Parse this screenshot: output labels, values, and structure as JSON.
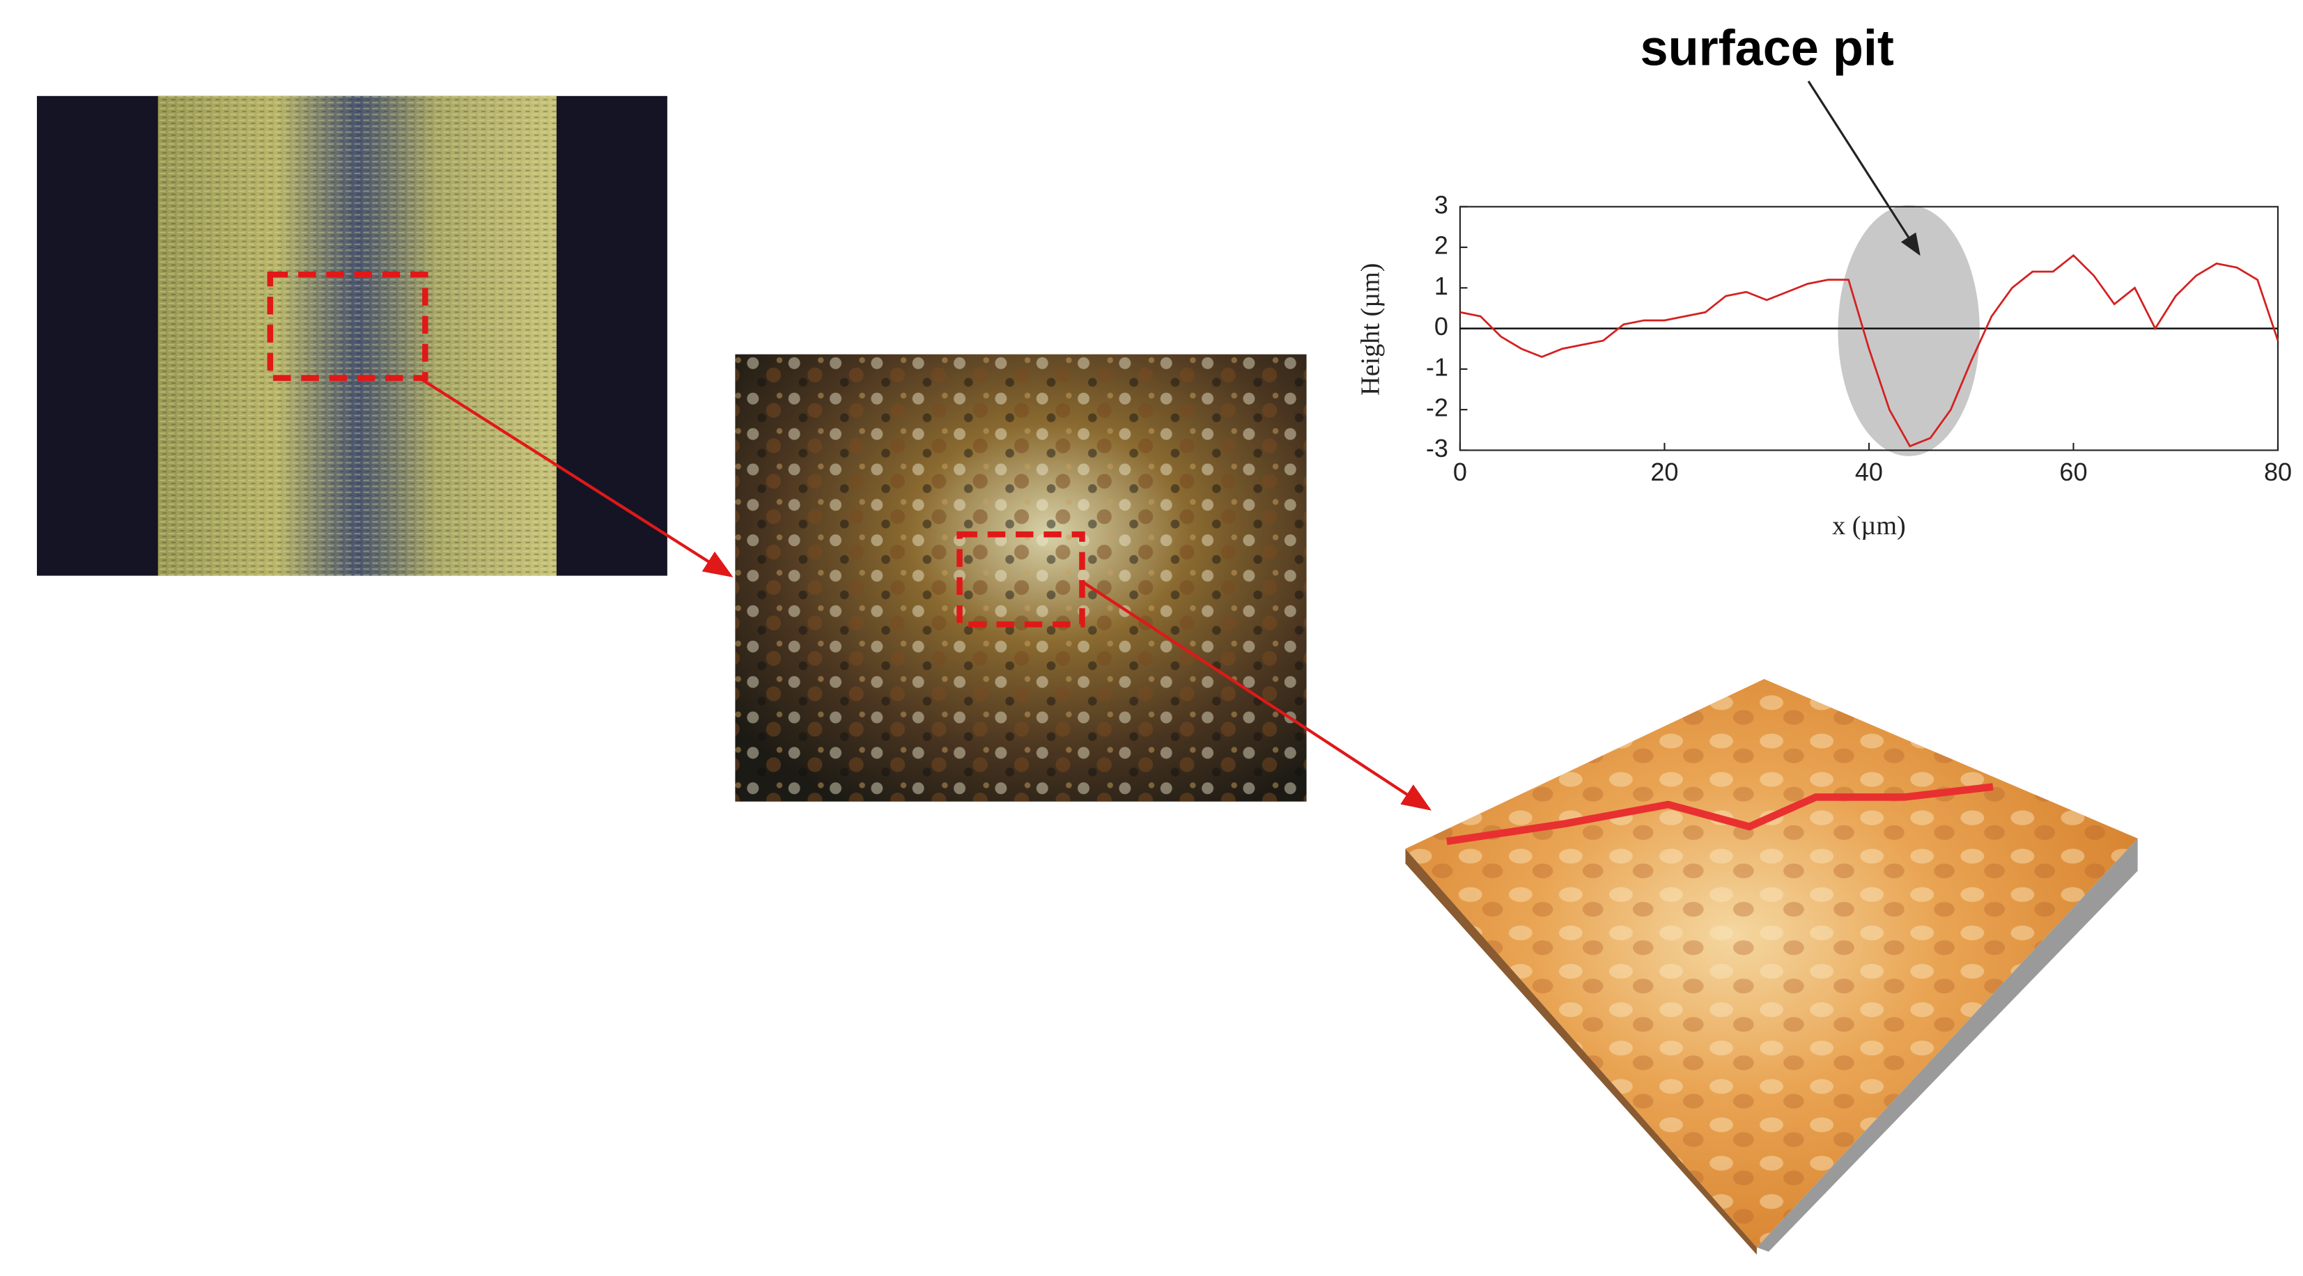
{
  "chart_data": {
    "type": "line",
    "annotation": "surface pit",
    "xlabel": "x (µm)",
    "ylabel": "Height (µm)",
    "x": [
      0,
      2,
      4,
      6,
      8,
      10,
      12,
      14,
      16,
      18,
      20,
      22,
      24,
      26,
      28,
      30,
      32,
      34,
      36,
      38,
      40,
      42,
      44,
      46,
      48,
      50,
      52,
      54,
      56,
      58,
      60,
      62,
      64,
      66,
      68,
      70,
      72,
      74,
      76,
      78,
      80
    ],
    "values": [
      0.4,
      0.3,
      -0.2,
      -0.5,
      -0.7,
      -0.5,
      -0.4,
      -0.3,
      0.1,
      0.2,
      0.2,
      0.3,
      0.4,
      0.8,
      0.9,
      0.7,
      0.9,
      1.1,
      1.2,
      1.2,
      -0.5,
      -2.0,
      -2.9,
      -2.7,
      -2.0,
      -0.8,
      0.3,
      1.0,
      1.4,
      1.4,
      1.8,
      1.3,
      0.6,
      1.0,
      0.0,
      0.8,
      1.3,
      1.6,
      1.5,
      1.2,
      -0.3
    ],
    "color": "#d42020",
    "reference_line": 0,
    "xlim": [
      0,
      80
    ],
    "xticks": [
      0,
      20,
      40,
      60,
      80
    ],
    "ylim": [
      -3,
      3
    ],
    "yticks": [
      -3,
      -2,
      -1,
      0,
      1,
      2,
      3
    ],
    "grid": false
  }
}
